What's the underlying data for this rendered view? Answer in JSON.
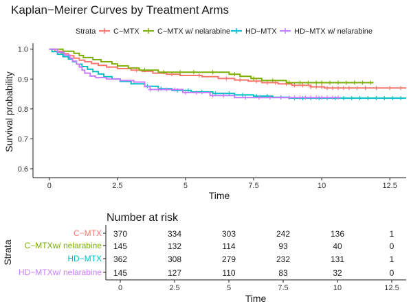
{
  "chart_data": [
    {
      "type": "line",
      "subtype": "kaplan-meier",
      "title": "Kaplan−Meirer Curves by Treatment Arms",
      "xlabel": "Time",
      "ylabel": "Survival probability",
      "xlim": [
        -0.6,
        13.1
      ],
      "ylim": [
        0.57,
        1.02
      ],
      "x_ticks": [
        0,
        2.5,
        5,
        7.5,
        10,
        12.5
      ],
      "x_tick_labels": [
        "0",
        "2.5",
        "5",
        "7.5",
        "10",
        "12.5"
      ],
      "y_ticks": [
        0.6,
        0.7,
        0.8,
        0.9,
        1.0
      ],
      "y_tick_labels": [
        "0.6",
        "0.7",
        "0.8",
        "0.9",
        "1.0"
      ],
      "grid": false,
      "legend": {
        "title": "Strata",
        "placement": "top",
        "entries": [
          "C−MTX",
          "C−MTX w/ nelarabine",
          "HD−MTX",
          "HD−MTX w/ nelarabine"
        ]
      },
      "series": [
        {
          "name": "C−MTX",
          "color": "#F8766D",
          "steps": [
            [
              0,
              1.0
            ],
            [
              0.2,
              0.993
            ],
            [
              0.45,
              0.985
            ],
            [
              0.7,
              0.978
            ],
            [
              0.9,
              0.97
            ],
            [
              1.1,
              0.963
            ],
            [
              1.3,
              0.958
            ],
            [
              1.55,
              0.952
            ],
            [
              1.8,
              0.946
            ],
            [
              2.1,
              0.94
            ],
            [
              2.5,
              0.935
            ],
            [
              3.0,
              0.93
            ],
            [
              3.4,
              0.926
            ],
            [
              3.8,
              0.92
            ],
            [
              4.3,
              0.916
            ],
            [
              4.8,
              0.912
            ],
            [
              5.6,
              0.908
            ],
            [
              6.2,
              0.902
            ],
            [
              6.8,
              0.897
            ],
            [
              7.3,
              0.893
            ],
            [
              7.8,
              0.888
            ],
            [
              8.4,
              0.884
            ],
            [
              8.9,
              0.879
            ],
            [
              9.6,
              0.874
            ],
            [
              10.1,
              0.87
            ],
            [
              13.1,
              0.87
            ]
          ],
          "censor_x": [
            3.2,
            4.5,
            5.5,
            6.5,
            7.0,
            7.6,
            8.0,
            8.3,
            8.7,
            9.0,
            9.3,
            9.6,
            9.8,
            10.0,
            10.2,
            10.4,
            10.6,
            10.8,
            11.0,
            11.3,
            11.6,
            12.0,
            12.5,
            12.9
          ]
        },
        {
          "name": "C−MTX w/ nelarabine",
          "color": "#7CAE00",
          "steps": [
            [
              0,
              1.0
            ],
            [
              0.5,
              0.993
            ],
            [
              0.9,
              0.986
            ],
            [
              1.1,
              0.979
            ],
            [
              1.25,
              0.972
            ],
            [
              1.6,
              0.965
            ],
            [
              1.9,
              0.958
            ],
            [
              2.3,
              0.951
            ],
            [
              2.5,
              0.944
            ],
            [
              2.9,
              0.937
            ],
            [
              3.3,
              0.93
            ],
            [
              4.0,
              0.923
            ],
            [
              6.6,
              0.916
            ],
            [
              7.0,
              0.909
            ],
            [
              7.4,
              0.902
            ],
            [
              7.8,
              0.895
            ],
            [
              8.7,
              0.888
            ],
            [
              11.9,
              0.888
            ]
          ],
          "censor_x": [
            3.5,
            4.2,
            4.8,
            5.3,
            6.0,
            6.8,
            7.5,
            8.2,
            8.8,
            9.2,
            9.5,
            9.8,
            10.0,
            10.3,
            10.6,
            10.9,
            11.2,
            11.5,
            11.8
          ]
        },
        {
          "name": "HD−MTX",
          "color": "#00BFC4",
          "steps": [
            [
              0,
              1.0
            ],
            [
              0.1,
              0.992
            ],
            [
              0.3,
              0.983
            ],
            [
              0.5,
              0.975
            ],
            [
              0.7,
              0.967
            ],
            [
              0.85,
              0.958
            ],
            [
              1.0,
              0.95
            ],
            [
              1.2,
              0.942
            ],
            [
              1.4,
              0.933
            ],
            [
              1.6,
              0.925
            ],
            [
              1.8,
              0.917
            ],
            [
              2.0,
              0.908
            ],
            [
              2.3,
              0.9
            ],
            [
              2.6,
              0.892
            ],
            [
              3.0,
              0.884
            ],
            [
              3.5,
              0.876
            ],
            [
              4.0,
              0.868
            ],
            [
              4.5,
              0.862
            ],
            [
              5.2,
              0.857
            ],
            [
              6.0,
              0.852
            ],
            [
              6.8,
              0.847
            ],
            [
              7.5,
              0.843
            ],
            [
              8.2,
              0.839
            ],
            [
              8.8,
              0.836
            ],
            [
              13.1,
              0.836
            ]
          ],
          "censor_x": [
            3.6,
            4.1,
            4.7,
            5.1,
            5.6,
            6.1,
            6.6,
            7.1,
            7.6,
            8.0,
            8.5,
            9.0,
            9.3,
            9.6,
            9.9,
            10.2,
            10.5,
            10.8,
            11.1,
            11.4,
            11.7,
            12.0,
            12.3,
            12.6,
            12.9
          ]
        },
        {
          "name": "HD−MTX w/ nelarabine",
          "color": "#C77CFF",
          "steps": [
            [
              0,
              1.0
            ],
            [
              0.3,
              0.99
            ],
            [
              0.55,
              0.98
            ],
            [
              0.75,
              0.97
            ],
            [
              0.85,
              0.96
            ],
            [
              1.0,
              0.95
            ],
            [
              1.1,
              0.94
            ],
            [
              1.2,
              0.93
            ],
            [
              1.3,
              0.92
            ],
            [
              1.5,
              0.91
            ],
            [
              1.7,
              0.905
            ],
            [
              2.1,
              0.9
            ],
            [
              2.6,
              0.895
            ],
            [
              3.1,
              0.89
            ],
            [
              3.5,
              0.875
            ],
            [
              3.7,
              0.865
            ],
            [
              4.9,
              0.855
            ],
            [
              5.9,
              0.845
            ],
            [
              6.8,
              0.838
            ],
            [
              10.7,
              0.838
            ]
          ],
          "censor_x": [
            3.7,
            4.0,
            4.3,
            4.6,
            5.0,
            5.4,
            6.0,
            6.4,
            7.2,
            7.7,
            8.1,
            8.5,
            8.8,
            9.0,
            9.2,
            9.4,
            9.6,
            9.8,
            10.0,
            10.2,
            10.4,
            10.6
          ]
        }
      ]
    },
    {
      "type": "table",
      "title": "Number at risk",
      "xlabel": "Time",
      "ylabel": "Strata",
      "x_ticks": [
        0,
        2.5,
        5,
        7.5,
        10,
        12.5
      ],
      "x_tick_labels": [
        "0",
        "2.5",
        "5",
        "7.5",
        "10",
        "12.5"
      ],
      "rows": [
        {
          "label": "C−MTX",
          "color": "#F8766D",
          "values": [
            "370",
            "334",
            "303",
            "242",
            "136",
            "1"
          ]
        },
        {
          "label": "C−MTXw/ nelarabine",
          "color": "#7CAE00",
          "values": [
            "145",
            "132",
            "114",
            "93",
            "40",
            "0"
          ]
        },
        {
          "label": "HD−MTX",
          "color": "#00BFC4",
          "values": [
            "362",
            "308",
            "279",
            "232",
            "131",
            "1"
          ]
        },
        {
          "label": "HD−MTXw/ nelarabine",
          "color": "#C77CFF",
          "values": [
            "145",
            "127",
            "110",
            "83",
            "32",
            "0"
          ]
        }
      ]
    }
  ]
}
